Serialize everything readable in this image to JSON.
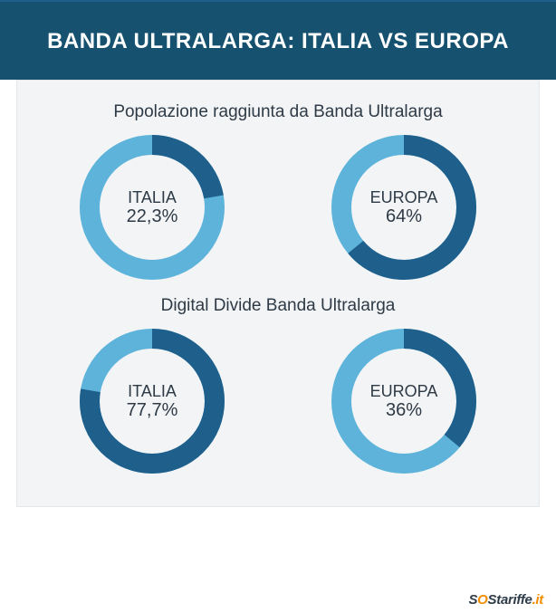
{
  "page": {
    "top_stripe_color": "#1f5f8b",
    "header": {
      "bg": "#16526f",
      "text": "BANDA ULTRALARGA: ITALIA VS EUROPA",
      "text_color": "#ffffff",
      "fontsize": 24
    },
    "panel": {
      "bg": "#f2f4f6",
      "border_color": "#e5e8eb"
    },
    "body_bg": "#ffffff"
  },
  "donut_style": {
    "size": 160,
    "ring_width": 22,
    "track_color": "#5db3d9",
    "fill_color": "#1f5f8b"
  },
  "sections": [
    {
      "title": "Popolazione raggiunta da Banda Ultralarga",
      "title_color": "#2e3a45",
      "title_fontsize": 19,
      "items": [
        {
          "name": "ITALIA",
          "value_label": "22,3%",
          "value_pct": 22.3,
          "name_fontsize": 18,
          "value_fontsize": 20,
          "label_color": "#2e3a45"
        },
        {
          "name": "EUROPA",
          "value_label": "64%",
          "value_pct": 64,
          "name_fontsize": 18,
          "value_fontsize": 20,
          "label_color": "#2e3a45"
        }
      ]
    },
    {
      "title": "Digital Divide Banda Ultralarga",
      "title_color": "#2e3a45",
      "title_fontsize": 19,
      "items": [
        {
          "name": "ITALIA",
          "value_label": "77,7%",
          "value_pct": 77.7,
          "name_fontsize": 18,
          "value_fontsize": 20,
          "label_color": "#2e3a45"
        },
        {
          "name": "EUROPA",
          "value_label": "36%",
          "value_pct": 36,
          "name_fontsize": 18,
          "value_fontsize": 20,
          "label_color": "#2e3a45"
        }
      ]
    }
  ],
  "footer": {
    "prefix": "S",
    "o": "O",
    "middle": "Stariffe",
    "suffix": ".it"
  }
}
